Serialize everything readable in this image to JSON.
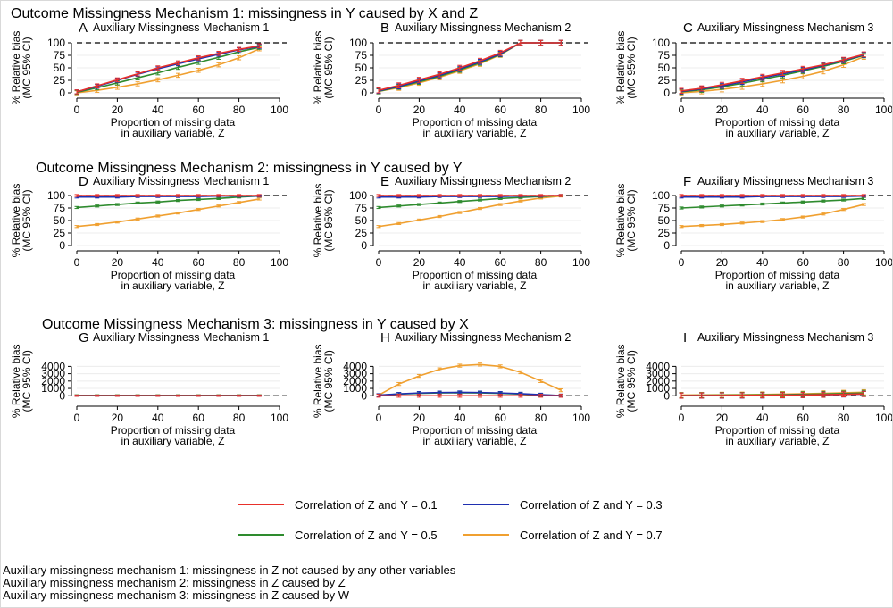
{
  "legend": {
    "items": [
      {
        "label": "Correlation of Z and Y = 0.1",
        "color": "#e8302a"
      },
      {
        "label": "Correlation of Z and Y = 0.3",
        "color": "#1f2fb0"
      },
      {
        "label": "Correlation of Z and Y = 0.5",
        "color": "#2e8b2e"
      },
      {
        "label": "Correlation of Z and Y = 0.7",
        "color": "#f0a030"
      }
    ]
  },
  "footnotes": [
    "Auxiliary missingness mechanism 1: missingness in Z not caused by any other variables",
    "Auxiliary missingness mechanism 2: missingness in Z caused by Z",
    "Auxiliary missingness mechanism 3: missingness in Z caused by W"
  ],
  "chart_data": {
    "type": "line",
    "row_titles": [
      "Outcome Missingness Mechanism 1: missingness in Y caused by X and Z",
      "Outcome Missingness Mechanism 2: missingness in Y caused by Y",
      "Outcome Missingness Mechanism 3: missingness in Y caused by X"
    ],
    "xlabel": [
      "Proportion of missing data",
      "in auxiliary variable, Z"
    ],
    "ylabel": [
      "% Relative bias",
      "(MC 95% CI)"
    ],
    "x": [
      0,
      10,
      20,
      30,
      40,
      50,
      60,
      70,
      80,
      90
    ],
    "xticks": [
      0,
      20,
      40,
      60,
      80,
      100
    ],
    "xlim": [
      0,
      100
    ],
    "series_names": [
      "Correlation of Z and Y = 0.1",
      "Correlation of Z and Y = 0.3",
      "Correlation of Z and Y = 0.5",
      "Correlation of Z and Y = 0.7"
    ],
    "series_colors": [
      "#e8302a",
      "#1f2fb0",
      "#2e8b2e",
      "#f0a030"
    ],
    "panels": [
      {
        "letter": "A",
        "title": "Auxiliary Missingness Mechanism 1",
        "row": 0,
        "col": 0,
        "yticks": [
          0,
          25,
          50,
          75,
          100
        ],
        "ylim": [
          0,
          100
        ],
        "ref_line": 100,
        "series": [
          [
            2,
            14,
            26,
            38,
            50,
            60,
            70,
            79,
            87,
            94
          ],
          [
            2,
            13,
            25,
            37,
            48,
            58,
            68,
            77,
            86,
            93
          ],
          [
            1,
            10,
            20,
            30,
            40,
            51,
            61,
            71,
            82,
            91
          ],
          [
            0,
            5,
            11,
            18,
            26,
            35,
            45,
            56,
            70,
            88
          ]
        ],
        "errbar": 4
      },
      {
        "letter": "B",
        "title": "Auxiliary Missingness Mechanism 2",
        "row": 0,
        "col": 1,
        "yticks": [
          0,
          25,
          50,
          75,
          100
        ],
        "ylim": [
          0,
          100
        ],
        "ref_line": 100,
        "series": [
          [
            5,
            15,
            26,
            37,
            50,
            64,
            80,
            100,
            100,
            100
          ],
          [
            4,
            13,
            24,
            35,
            48,
            62,
            78,
            100,
            100,
            100
          ],
          [
            3,
            12,
            22,
            33,
            46,
            60,
            77,
            100,
            100,
            100
          ],
          [
            3,
            10,
            20,
            31,
            44,
            58,
            76,
            100,
            100,
            100
          ]
        ],
        "errbar": 5
      },
      {
        "letter": "C",
        "title": "Auxiliary Missingness Mechanism 3",
        "row": 0,
        "col": 2,
        "yticks": [
          0,
          25,
          50,
          75,
          100
        ],
        "ylim": [
          0,
          100
        ],
        "ref_line": 100,
        "series": [
          [
            4,
            9,
            16,
            24,
            32,
            40,
            48,
            56,
            66,
            77
          ],
          [
            3,
            8,
            14,
            22,
            30,
            38,
            46,
            55,
            65,
            76
          ],
          [
            2,
            6,
            12,
            19,
            27,
            35,
            44,
            53,
            63,
            75
          ],
          [
            0,
            3,
            7,
            12,
            18,
            25,
            33,
            43,
            56,
            72
          ]
        ],
        "errbar": 5
      },
      {
        "letter": "D",
        "title": "Auxiliary Missingness Mechanism 1",
        "row": 1,
        "col": 0,
        "yticks": [
          0,
          25,
          50,
          75,
          100
        ],
        "ylim": [
          0,
          100
        ],
        "ref_line": 100,
        "series": [
          [
            100,
            100,
            100,
            100,
            100,
            100,
            100,
            100,
            100,
            100
          ],
          [
            97,
            97,
            97,
            98,
            98,
            98,
            98,
            99,
            99,
            99
          ],
          [
            76,
            79,
            82,
            85,
            87,
            90,
            92,
            94,
            97,
            99
          ],
          [
            38,
            42,
            47,
            53,
            59,
            65,
            72,
            79,
            86,
            93
          ]
        ],
        "errbar": 2
      },
      {
        "letter": "E",
        "title": "Auxiliary Missingness Mechanism 2",
        "row": 1,
        "col": 1,
        "yticks": [
          0,
          25,
          50,
          75,
          100
        ],
        "ylim": [
          0,
          100
        ],
        "ref_line": 100,
        "series": [
          [
            100,
            100,
            100,
            100,
            100,
            100,
            100,
            100,
            100,
            100
          ],
          [
            97,
            97,
            97,
            98,
            98,
            98,
            98,
            99,
            99,
            100
          ],
          [
            76,
            79,
            82,
            85,
            88,
            91,
            94,
            96,
            98,
            100
          ],
          [
            38,
            44,
            51,
            58,
            66,
            74,
            82,
            89,
            95,
            99
          ]
        ],
        "errbar": 2
      },
      {
        "letter": "F",
        "title": "Auxiliary Missingness Mechanism 3",
        "row": 1,
        "col": 2,
        "yticks": [
          0,
          25,
          50,
          75,
          100
        ],
        "ylim": [
          0,
          100
        ],
        "ref_line": 100,
        "series": [
          [
            100,
            100,
            100,
            100,
            100,
            100,
            100,
            100,
            100,
            100
          ],
          [
            97,
            97,
            97,
            97,
            98,
            98,
            98,
            98,
            98,
            99
          ],
          [
            75,
            77,
            79,
            81,
            83,
            85,
            87,
            89,
            91,
            94
          ],
          [
            38,
            40,
            42,
            45,
            48,
            52,
            57,
            63,
            72,
            82
          ]
        ],
        "errbar": 2
      },
      {
        "letter": "G",
        "title": "Auxiliary Missingness Mechanism 1",
        "row": 2,
        "col": 0,
        "yticks": [
          0,
          1000,
          2000,
          3000,
          4000
        ],
        "ylim": [
          -700,
          4900
        ],
        "ref_line": 0,
        "series": [
          [
            0,
            0,
            0,
            0,
            0,
            0,
            0,
            0,
            0,
            0
          ],
          [
            20,
            20,
            20,
            20,
            20,
            20,
            20,
            20,
            20,
            20
          ],
          [
            40,
            40,
            40,
            40,
            40,
            40,
            40,
            40,
            40,
            40
          ],
          [
            60,
            60,
            60,
            60,
            60,
            60,
            60,
            60,
            60,
            60
          ]
        ],
        "errbar": 80
      },
      {
        "letter": "H",
        "title": "Auxiliary Missingness Mechanism 2",
        "row": 2,
        "col": 1,
        "yticks": [
          0,
          1000,
          2000,
          3000,
          4000
        ],
        "ylim": [
          -700,
          4900
        ],
        "ref_line": 0,
        "series": [
          [
            0,
            0,
            0,
            0,
            0,
            0,
            0,
            0,
            0,
            0
          ],
          [
            80,
            250,
            380,
            440,
            460,
            440,
            380,
            280,
            150,
            30
          ],
          [
            60,
            230,
            330,
            380,
            400,
            380,
            320,
            230,
            110,
            20
          ],
          [
            80,
            1600,
            2700,
            3600,
            4100,
            4250,
            4000,
            3200,
            2000,
            750
          ]
        ],
        "errbar": 200
      },
      {
        "letter": "I",
        "title": "Auxiliary Missingness Mechanism 3",
        "row": 2,
        "col": 2,
        "yticks": [
          0,
          1000,
          2000,
          3000,
          4000
        ],
        "ylim": [
          -700,
          4900
        ],
        "ref_line": 0,
        "series": [
          [
            20,
            30,
            40,
            50,
            60,
            80,
            100,
            140,
            190,
            250
          ],
          [
            10,
            20,
            20,
            30,
            40,
            60,
            90,
            130,
            180,
            240
          ],
          [
            60,
            70,
            90,
            100,
            120,
            150,
            190,
            240,
            300,
            380
          ],
          [
            100,
            110,
            130,
            150,
            180,
            220,
            270,
            330,
            400,
            480
          ]
        ],
        "errbar": 350
      }
    ]
  }
}
